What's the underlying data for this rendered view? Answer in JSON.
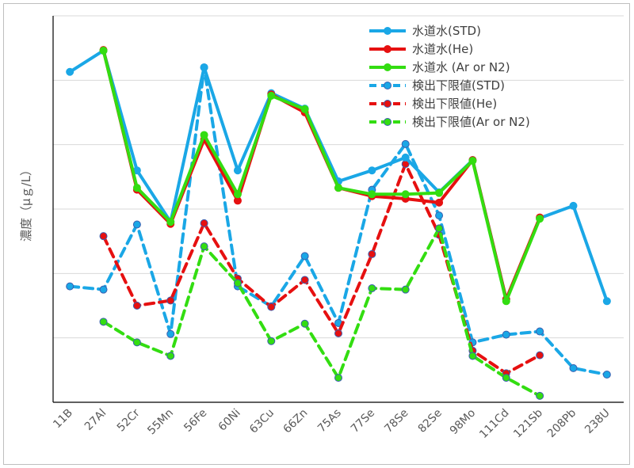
{
  "chart_data": {
    "type": "line",
    "title": "",
    "ylabel": "濃度（μｇ/L）",
    "xlabel": "",
    "categories": [
      "11B",
      "27Al",
      "52Cr",
      "55Mn",
      "56Fe",
      "60Ni",
      "63Cu",
      "66Zn",
      "75As",
      "77Se",
      "78Se",
      "82Se",
      "98Mo",
      "111Cd",
      "121Sb",
      "208Pb",
      "238U"
    ],
    "y_tick_labels_shown": false,
    "ylim": [
      0,
      6
    ],
    "grid": true,
    "legend_position": "top-right",
    "series": [
      {
        "name": "水道水(STD)",
        "color": "#1aa7e6",
        "dash": false,
        "values": [
          5.13,
          5.46,
          3.6,
          2.8,
          5.2,
          3.6,
          4.8,
          4.56,
          3.43,
          3.6,
          3.8,
          3.26,
          3.76,
          1.6,
          2.86,
          3.05,
          1.57
        ]
      },
      {
        "name": "水道水(He)",
        "color": "#e61010",
        "dash": false,
        "values": [
          null,
          5.47,
          3.3,
          2.77,
          4.08,
          3.13,
          4.78,
          4.5,
          3.33,
          3.2,
          3.16,
          3.1,
          3.76,
          1.6,
          2.87,
          null,
          null
        ]
      },
      {
        "name": "水道水 (Ar or N2)",
        "color": "#33dd11",
        "dash": false,
        "values": [
          null,
          5.46,
          3.33,
          2.8,
          4.15,
          3.23,
          4.76,
          4.55,
          3.33,
          3.23,
          3.23,
          3.25,
          3.75,
          1.57,
          2.85,
          null,
          null
        ]
      },
      {
        "name": "検出下限値(STD)",
        "color": "#1aa7e6",
        "dash": true,
        "values": [
          1.8,
          1.75,
          2.76,
          1.06,
          5.2,
          1.8,
          1.49,
          2.27,
          1.23,
          3.3,
          4.01,
          2.9,
          0.93,
          1.05,
          1.1,
          0.53,
          0.43
        ]
      },
      {
        "name": "検出下限値(He)",
        "color": "#e61010",
        "dash": true,
        "values": [
          null,
          2.58,
          1.5,
          1.58,
          2.78,
          1.92,
          1.48,
          1.9,
          1.07,
          2.3,
          3.7,
          2.6,
          0.8,
          0.45,
          0.73,
          null,
          null
        ]
      },
      {
        "name": "検出下限値(Ar or N2)",
        "color": "#33dd11",
        "dash": true,
        "values": [
          null,
          1.25,
          0.93,
          0.72,
          2.42,
          1.85,
          0.95,
          1.22,
          0.38,
          1.77,
          1.75,
          2.7,
          0.72,
          0.38,
          0.1,
          null,
          null
        ]
      }
    ]
  }
}
